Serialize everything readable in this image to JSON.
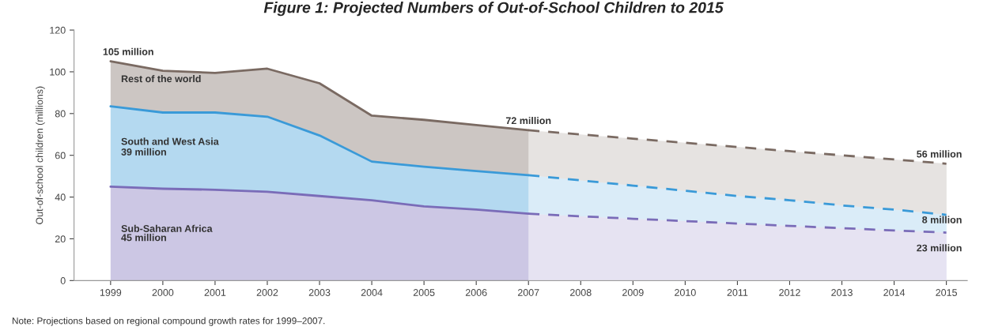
{
  "chart_data": {
    "type": "area",
    "title": "Figure 1: Projected Numbers of Out-of-School Children to 2015",
    "ylabel": "Out-of-school children (millions)",
    "stacked": true,
    "legend": false,
    "grid": false,
    "xlim": [
      1998.3,
      2015.4
    ],
    "xticks": [
      1999,
      2000,
      2001,
      2002,
      2003,
      2004,
      2005,
      2006,
      2007,
      2008,
      2009,
      2010,
      2011,
      2012,
      2013,
      2014,
      2015
    ],
    "ylim": [
      0,
      120
    ],
    "yticks": [
      0,
      20,
      40,
      60,
      80,
      100,
      120
    ],
    "x": [
      1999,
      2000,
      2001,
      2002,
      2003,
      2004,
      2005,
      2006,
      2007,
      2008,
      2009,
      2010,
      2011,
      2012,
      2013,
      2014,
      2015
    ],
    "series": [
      {
        "name": "Sub-Saharan Africa",
        "color": "#7a6cb8",
        "values": [
          45,
          44,
          43.5,
          42.5,
          40.5,
          38.5,
          35.5,
          34,
          32,
          30.8,
          29.6,
          28.5,
          27.3,
          26.2,
          25.1,
          24,
          23
        ]
      },
      {
        "name": "South and West Asia",
        "color": "#3a9ad8",
        "values": [
          38.5,
          36.5,
          37,
          36,
          29,
          18.5,
          19,
          18.5,
          18.5,
          17.2,
          15.9,
          14.5,
          13.2,
          12.3,
          10.9,
          10,
          8.5
        ]
      },
      {
        "name": "Rest of the world",
        "color": "#7a6a62",
        "values": [
          21.5,
          20,
          19,
          23,
          25,
          22,
          22.5,
          22,
          21.5,
          22,
          22.5,
          23,
          23.5,
          23.5,
          24,
          24,
          24.5
        ]
      }
    ],
    "bands": [
      {
        "axis": "x",
        "from": 2007,
        "to": 2015,
        "color": "#ffffff"
      }
    ],
    "annotations": [
      {
        "text": "105 million",
        "x": 1999,
        "y": 105
      },
      {
        "text": "39 million",
        "x": 1999,
        "y": 57
      },
      {
        "text": "45 million",
        "x": 1999,
        "y": 16
      },
      {
        "text": "72 million",
        "x": 2007,
        "y": 72
      },
      {
        "text": "56 million",
        "x": 2015,
        "y": 56
      },
      {
        "text": "8 million",
        "x": 2015,
        "y": 24.5
      },
      {
        "text": "23 million",
        "x": 2015,
        "y": 11
      },
      "Note: Projections based on regional compound growth rates for 1999–2007."
    ]
  }
}
